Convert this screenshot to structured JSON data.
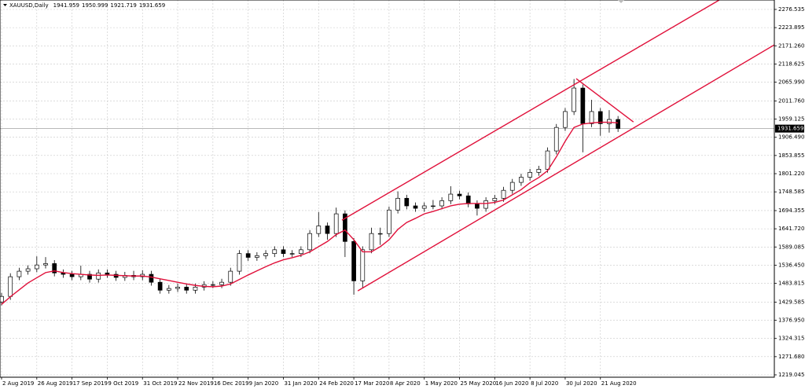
{
  "chart_data": {
    "type": "candlestick",
    "title": "XAUUSD,Daily",
    "header_values": [
      1941.959,
      1950.999,
      1921.719,
      1931.659
    ],
    "current_price": 1931.659,
    "x": [
      0,
      4,
      8,
      12,
      16,
      20,
      24,
      28,
      32,
      36,
      40,
      44,
      48,
      52,
      56,
      60,
      64,
      68,
      72,
      76,
      80,
      84,
      88,
      92,
      96,
      100,
      104,
      108,
      112,
      116,
      120,
      124,
      128,
      132,
      136,
      140,
      144,
      148,
      152,
      156,
      160,
      164,
      168,
      172,
      176,
      180,
      184,
      188,
      192,
      196,
      200,
      204,
      208,
      212,
      216,
      220,
      224,
      228,
      232,
      236,
      240,
      244,
      248,
      252,
      256,
      260,
      264,
      268,
      272,
      276,
      280
    ],
    "open": [
      1430,
      1446,
      1503,
      1519,
      1526,
      1537,
      1541,
      1514,
      1510,
      1503,
      1510,
      1496,
      1514,
      1510,
      1501,
      1507,
      1503,
      1510,
      1487,
      1464,
      1469,
      1473,
      1464,
      1473,
      1480,
      1480,
      1487,
      1519,
      1570,
      1559,
      1564,
      1570,
      1581,
      1570,
      1570,
      1581,
      1628,
      1650,
      1628,
      1685,
      1605,
      1491,
      1581,
      1628,
      1628,
      1696,
      1730,
      1708,
      1701,
      1708,
      1708,
      1723,
      1742,
      1737,
      1714,
      1701,
      1723,
      1730,
      1753,
      1776,
      1791,
      1805,
      1814,
      1867,
      1935,
      1981,
      2049,
      1946,
      1981,
      1946,
      1958
    ],
    "high": [
      1456,
      1513,
      1529,
      1536,
      1562,
      1560,
      1551,
      1524,
      1520,
      1535,
      1520,
      1524,
      1524,
      1520,
      1517,
      1520,
      1522,
      1520,
      1497,
      1479,
      1483,
      1483,
      1483,
      1490,
      1490,
      1497,
      1529,
      1580,
      1580,
      1574,
      1580,
      1591,
      1591,
      1580,
      1591,
      1638,
      1690,
      1660,
      1703,
      1695,
      1615,
      1591,
      1645,
      1645,
      1706,
      1750,
      1740,
      1718,
      1718,
      1725,
      1733,
      1765,
      1752,
      1747,
      1724,
      1733,
      1740,
      1763,
      1786,
      1801,
      1815,
      1824,
      1877,
      1945,
      1991,
      2075,
      2059,
      2015,
      1991,
      1985,
      1968
    ],
    "low": [
      1420,
      1436,
      1493,
      1509,
      1516,
      1527,
      1504,
      1500,
      1493,
      1493,
      1486,
      1486,
      1500,
      1491,
      1491,
      1493,
      1493,
      1477,
      1454,
      1454,
      1459,
      1454,
      1454,
      1463,
      1470,
      1470,
      1477,
      1509,
      1549,
      1549,
      1554,
      1560,
      1560,
      1560,
      1560,
      1571,
      1618,
      1610,
      1618,
      1560,
      1451,
      1471,
      1571,
      1595,
      1618,
      1686,
      1698,
      1691,
      1691,
      1698,
      1698,
      1713,
      1727,
      1704,
      1680,
      1691,
      1713,
      1720,
      1743,
      1766,
      1781,
      1795,
      1804,
      1857,
      1925,
      1971,
      1863,
      1936,
      1911,
      1920,
      1922
    ],
    "close": [
      1446,
      1503,
      1519,
      1526,
      1537,
      1541,
      1514,
      1510,
      1503,
      1510,
      1496,
      1514,
      1510,
      1501,
      1507,
      1503,
      1510,
      1487,
      1464,
      1469,
      1473,
      1464,
      1473,
      1480,
      1480,
      1487,
      1519,
      1570,
      1559,
      1564,
      1570,
      1581,
      1570,
      1570,
      1581,
      1628,
      1650,
      1628,
      1685,
      1605,
      1491,
      1581,
      1628,
      1628,
      1696,
      1730,
      1708,
      1701,
      1708,
      1708,
      1723,
      1742,
      1737,
      1714,
      1701,
      1723,
      1730,
      1753,
      1776,
      1791,
      1805,
      1814,
      1867,
      1935,
      1981,
      2049,
      1946,
      1981,
      1946,
      1958,
      1932
    ],
    "moving_average": {
      "color": "#e0103a",
      "values": [
        1423,
        1445,
        1465,
        1485,
        1500,
        1515,
        1520,
        1515,
        1512,
        1510,
        1508,
        1507,
        1508,
        1507,
        1506,
        1505,
        1505,
        1502,
        1497,
        1492,
        1487,
        1482,
        1478,
        1475,
        1474,
        1476,
        1482,
        1495,
        1508,
        1520,
        1532,
        1543,
        1552,
        1558,
        1565,
        1575,
        1590,
        1605,
        1625,
        1638,
        1610,
        1575,
        1575,
        1590,
        1610,
        1640,
        1660,
        1672,
        1685,
        1692,
        1700,
        1708,
        1713,
        1715,
        1715,
        1715,
        1718,
        1725,
        1740,
        1755,
        1775,
        1790,
        1810,
        1850,
        1895,
        1935,
        1945,
        1948,
        1950,
        1950,
        1948
      ]
    },
    "trendlines": [
      {
        "color": "#e0103a",
        "start": [
          154.6,
          1666.7
        ],
        "end": [
          326,
          2303.8
        ]
      },
      {
        "color": "#e0103a",
        "start": [
          161.8,
          1462
        ],
        "end": [
          351,
          2174
        ]
      },
      {
        "color": "#e0103a",
        "start": [
          261,
          2076.3
        ],
        "end": [
          287,
          1951
        ]
      }
    ],
    "xlim": [
      -0.714,
      351
    ],
    "ylim": [
      1212.2,
      2303.8
    ],
    "xticks": [
      {
        "value": 0,
        "label": "2 Aug 2019"
      },
      {
        "value": 16,
        "label": "26 Aug 2019"
      },
      {
        "value": 32,
        "label": "17 Sep 2019"
      },
      {
        "value": 48,
        "label": "9 Oct 2019"
      },
      {
        "value": 64,
        "label": "31 Oct 2019"
      },
      {
        "value": 80,
        "label": "22 Nov 2019"
      },
      {
        "value": 96,
        "label": "16 Dec 2019"
      },
      {
        "value": 112,
        "label": "9 Jan 2020"
      },
      {
        "value": 128,
        "label": "31 Jan 2020"
      },
      {
        "value": 144,
        "label": "24 Feb 2020"
      },
      {
        "value": 160,
        "label": "17 Mar 2020"
      },
      {
        "value": 176,
        "label": "8 Apr 2020"
      },
      {
        "value": 192,
        "label": "1 May 2020"
      },
      {
        "value": 208,
        "label": "25 May 2020"
      },
      {
        "value": 224,
        "label": "16 Jun 2020"
      },
      {
        "value": 240,
        "label": "8 Jul 2020"
      },
      {
        "value": 256,
        "label": "30 Jul 2020"
      },
      {
        "value": 272,
        "label": "21 Aug 2020"
      }
    ],
    "yticks": [
      2276.535,
      2223.895,
      {
        "value": 2171.26,
        "label": "2171.260"
      },
      2118.625,
      {
        "value": 2065.99,
        "label": "2065.990"
      },
      {
        "value": 2011.76,
        "label": "2011.760"
      },
      1959.125,
      {
        "value": 1906.49,
        "label": "1906.490"
      },
      1853.855,
      {
        "value": 1801.22,
        "label": "1801.220"
      },
      1748.585,
      1694.355,
      {
        "value": 1641.72,
        "label": "1641.720"
      },
      1589.085,
      {
        "value": 1536.45,
        "label": "1536.450"
      },
      1483.815,
      1429.585,
      {
        "value": 1376.95,
        "label": "1376.950"
      },
      1324.315,
      {
        "value": 1271.68,
        "label": "1271.680"
      },
      1219.045
    ],
    "grid": true,
    "bull_color": "#ffffff",
    "bear_color": "#000000"
  }
}
